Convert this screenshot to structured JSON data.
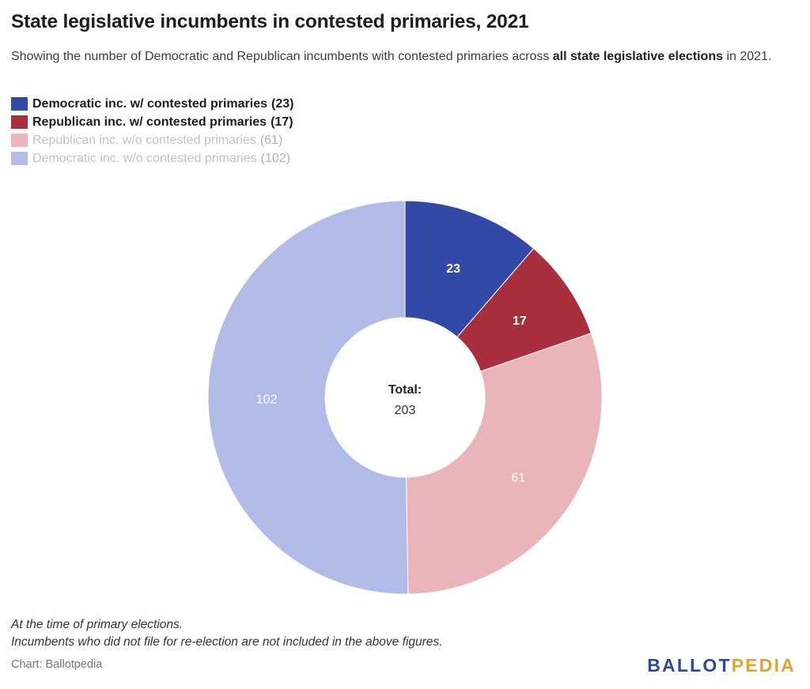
{
  "header": {
    "title": "State legislative incumbents in contested primaries, 2021",
    "subtitle_pre": "Showing the number of Democratic and Republican incumbents with contested primaries across ",
    "subtitle_bold": "all state legislative elections",
    "subtitle_post": " in 2021."
  },
  "chart_data": {
    "type": "pie",
    "donut": true,
    "categories": [
      "Democratic inc. w/ contested primaries",
      "Republican inc. w/ contested primaries",
      "Republican inc. w/o contested primaries",
      "Democratic inc. w/o contested primaries"
    ],
    "values": [
      23,
      17,
      61,
      102
    ],
    "colors": [
      "#3249a8",
      "#a8303e",
      "#eab5b9",
      "#b1bbe8"
    ],
    "label_colors": [
      "#ffffff",
      "#ffffff",
      "#ffffff",
      "#ffffff"
    ],
    "active": [
      true,
      true,
      false,
      false
    ],
    "center_label": "Total:",
    "center_value": "203",
    "legend_placement": "top-left"
  },
  "footer": {
    "note_1": "At the time of primary elections.",
    "note_2": "Incumbents who did not file for re-election are not included in the above figures.",
    "source": "Chart: Ballotpedia",
    "logo_part1": "BALLOT",
    "logo_part2": "PEDIA"
  }
}
